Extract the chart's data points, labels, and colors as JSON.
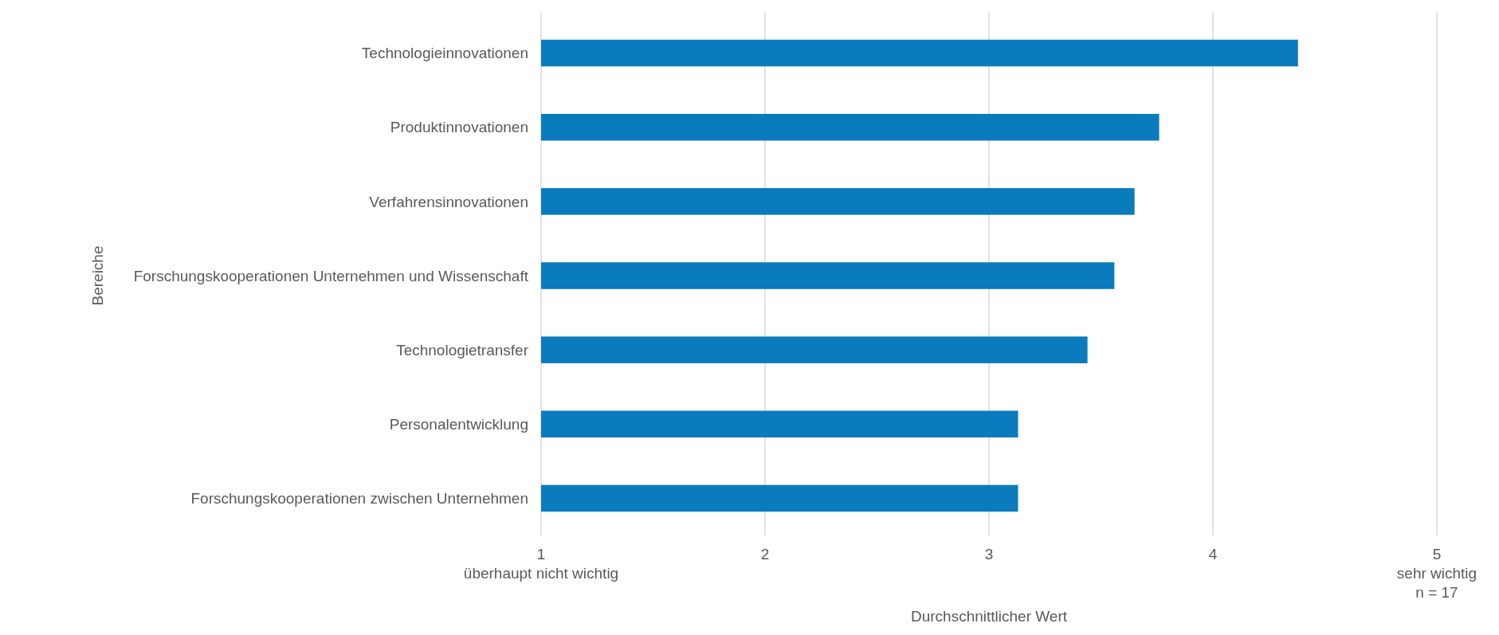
{
  "chart_data": {
    "type": "bar",
    "orientation": "horizontal",
    "xlabel": "Durchschnittlicher Wert",
    "ylabel": "Bereiche",
    "categories": [
      "Technologieinnovationen",
      "Produktinnovationen",
      "Verfahrensinnovationen",
      "Forschungskooperationen Unternehmen und Wissenschaft",
      "Technologietransfer",
      "Personalentwicklung",
      "Forschungskooperationen zwischen Unternehmen"
    ],
    "values": [
      4.38,
      3.76,
      3.65,
      3.56,
      3.44,
      3.13,
      3.13
    ],
    "color": "#0a7bbd",
    "xlim": [
      1,
      5
    ],
    "xticks": [
      {
        "value": 1,
        "label": "1\nüberhaupt nicht wichtig"
      },
      2,
      3,
      4,
      {
        "value": 5,
        "label": "5\nsehr wichtig"
      }
    ],
    "grid": "x",
    "annotations": [
      "n = 17"
    ]
  }
}
